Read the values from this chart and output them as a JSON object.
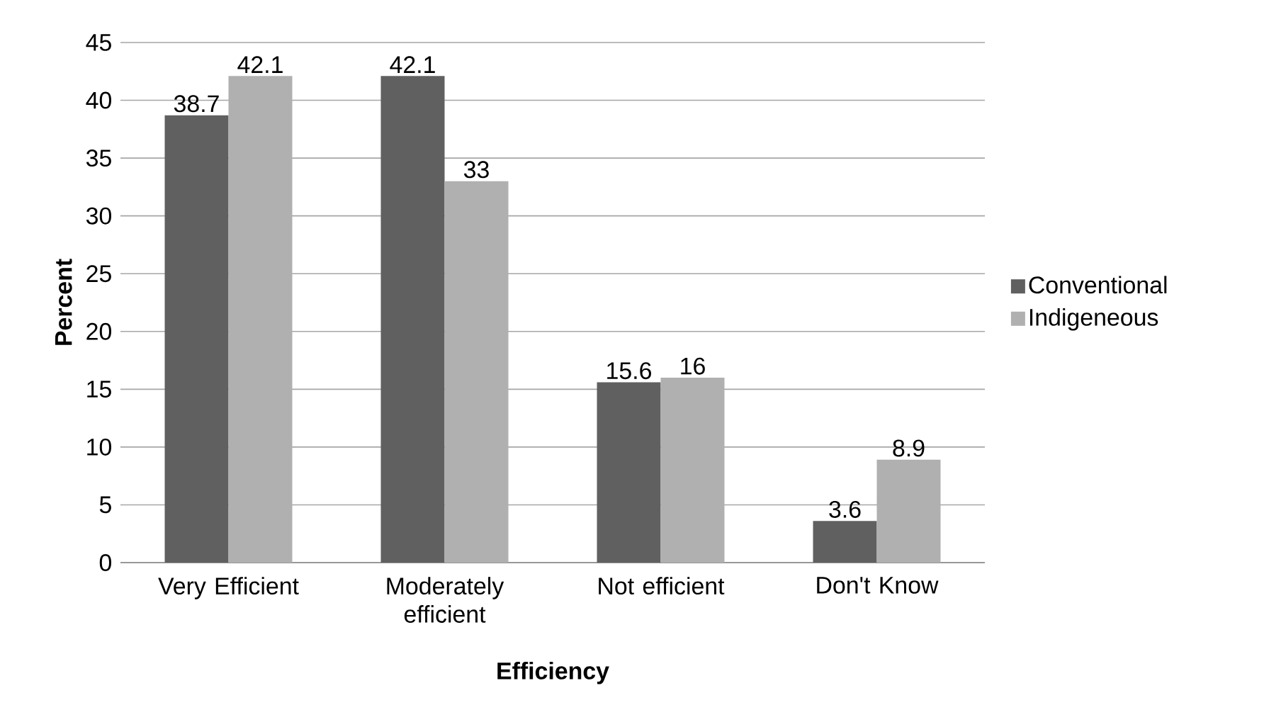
{
  "chart_data": {
    "type": "bar",
    "xlabel": "Efficiency",
    "ylabel": "Percent",
    "categories": [
      "Very Efficient",
      "Moderately efficient",
      "Not efficient",
      "Don't Know"
    ],
    "series": [
      {
        "name": "Conventional",
        "color": "#606060",
        "values": [
          38.7,
          42.1,
          15.6,
          3.6
        ]
      },
      {
        "name": "Indigeneous",
        "color": "#b0b0b0",
        "values": [
          42.1,
          33,
          16,
          8.9
        ]
      }
    ],
    "ylim": [
      0,
      45
    ],
    "yticks": [
      0,
      5,
      10,
      15,
      20,
      25,
      30,
      35,
      40,
      45
    ],
    "grid": "y",
    "legend": "right",
    "data_labels": true
  }
}
